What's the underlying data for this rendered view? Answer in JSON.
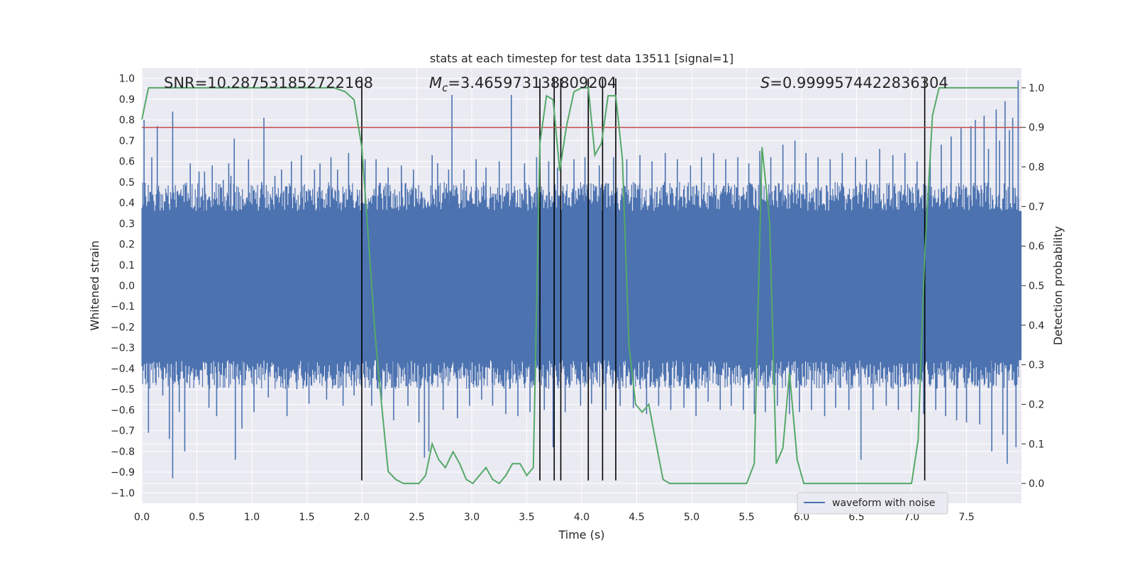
{
  "chart_data": {
    "type": "line",
    "title": "stats at each timestep for test data 13511 [signal=1]",
    "xlabel": "Time (s)",
    "ylabel": "Whitened strain",
    "ylabel_right": "Detection probability",
    "xlim": [
      0.0,
      8.0
    ],
    "ylim": [
      -1.05,
      1.05
    ],
    "ylim_right": [
      -0.05,
      1.05
    ],
    "x_ticks": [
      "0.0",
      "0.5",
      "1.0",
      "1.5",
      "2.0",
      "2.5",
      "3.0",
      "3.5",
      "4.0",
      "4.5",
      "5.0",
      "5.5",
      "6.0",
      "6.5",
      "7.0",
      "7.5"
    ],
    "y_ticks": [
      "1.0",
      "0.9",
      "0.8",
      "0.7",
      "0.6",
      "0.5",
      "0.4",
      "0.3",
      "0.2",
      "0.1",
      "0.0",
      "−0.1",
      "−0.2",
      "−0.3",
      "−0.4",
      "−0.5",
      "−0.6",
      "−0.7",
      "−0.8",
      "−0.9",
      "−1.0"
    ],
    "y_ticks_right": [
      "1.0",
      "0.9",
      "0.8",
      "0.7",
      "0.6",
      "0.5",
      "0.4",
      "0.3",
      "0.2",
      "0.1",
      "0.0"
    ],
    "grid": true,
    "legend_position": "bottom-right",
    "annotations": {
      "snr": "SNR=10.287531852722168",
      "mc_symbol": "M",
      "mc_sub": "c",
      "mc_value": "=3.465973138809204",
      "s_symbol": "S",
      "s_value": "=0.9999574422836304"
    },
    "threshold_right": 0.9,
    "vertical_markers_x": [
      2.0,
      3.62,
      3.75,
      3.81,
      4.06,
      4.19,
      4.31,
      7.12
    ],
    "vertical_markers_yrange": [
      -0.94,
      1.0
    ],
    "series": [
      {
        "name": "waveform with noise",
        "color": "#4c72b0",
        "envelope": 0.36,
        "tails": [
          [
            0.02,
            0.8
          ],
          [
            0.06,
            -0.71
          ],
          [
            0.09,
            0.62
          ],
          [
            0.14,
            0.77
          ],
          [
            0.19,
            -0.53
          ],
          [
            0.25,
            -0.74
          ],
          [
            0.28,
            0.84
          ],
          [
            0.28,
            -0.93
          ],
          [
            0.34,
            -0.61
          ],
          [
            0.39,
            -0.8
          ],
          [
            0.44,
            0.59
          ],
          [
            0.52,
            0.55
          ],
          [
            0.57,
            0.55
          ],
          [
            0.61,
            -0.59
          ],
          [
            0.64,
            0.58
          ],
          [
            0.68,
            -0.63
          ],
          [
            0.74,
            0.51
          ],
          [
            0.79,
            0.59
          ],
          [
            0.81,
            0.53
          ],
          [
            0.84,
            0.71
          ],
          [
            0.85,
            -0.84
          ],
          [
            0.91,
            -0.69
          ],
          [
            0.97,
            0.61
          ],
          [
            1.02,
            -0.61
          ],
          [
            1.09,
            0.5
          ],
          [
            1.11,
            0.81
          ],
          [
            1.15,
            -0.54
          ],
          [
            1.21,
            0.53
          ],
          [
            1.27,
            0.56
          ],
          [
            1.32,
            -0.63
          ],
          [
            1.36,
            0.6
          ],
          [
            1.41,
            -0.5
          ],
          [
            1.45,
            0.63
          ],
          [
            1.52,
            -0.57
          ],
          [
            1.57,
            0.56
          ],
          [
            1.62,
            0.59
          ],
          [
            1.68,
            -0.55
          ],
          [
            1.72,
            0.62
          ],
          [
            1.78,
            0.56
          ],
          [
            1.83,
            -0.58
          ],
          [
            1.88,
            0.64
          ],
          [
            1.93,
            -0.53
          ],
          [
            2.03,
            0.61
          ],
          [
            2.09,
            -0.58
          ],
          [
            2.13,
            0.61
          ],
          [
            2.18,
            -0.55
          ],
          [
            2.24,
            0.57
          ],
          [
            2.29,
            -0.65
          ],
          [
            2.36,
            0.58
          ],
          [
            2.42,
            -0.58
          ],
          [
            2.47,
            0.56
          ],
          [
            2.52,
            -0.66
          ],
          [
            2.57,
            -0.83
          ],
          [
            2.61,
            -0.8
          ],
          [
            2.64,
            0.63
          ],
          [
            2.69,
            0.59
          ],
          [
            2.74,
            -0.6
          ],
          [
            2.79,
            0.56
          ],
          [
            2.82,
            0.92
          ],
          [
            2.87,
            -0.64
          ],
          [
            2.93,
            0.56
          ],
          [
            2.98,
            -0.58
          ],
          [
            3.04,
            0.61
          ],
          [
            3.09,
            -0.55
          ],
          [
            3.13,
            0.57
          ],
          [
            3.19,
            -0.58
          ],
          [
            3.25,
            0.6
          ],
          [
            3.31,
            -0.62
          ],
          [
            3.36,
            0.92
          ],
          [
            3.42,
            -0.63
          ],
          [
            3.48,
            0.59
          ],
          [
            3.53,
            -0.61
          ],
          [
            3.59,
            0.62
          ],
          [
            3.66,
            -0.6
          ],
          [
            3.7,
            0.6
          ],
          [
            3.74,
            -0.78
          ],
          [
            3.78,
            0.57
          ],
          [
            3.85,
            -0.61
          ],
          [
            3.93,
            0.61
          ],
          [
            3.99,
            -0.58
          ],
          [
            4.03,
            0.62
          ],
          [
            4.09,
            -0.57
          ],
          [
            4.16,
            0.58
          ],
          [
            4.22,
            -0.6
          ],
          [
            4.29,
            0.62
          ],
          [
            4.35,
            -0.58
          ],
          [
            4.41,
            0.61
          ],
          [
            4.47,
            -0.59
          ],
          [
            4.53,
            0.63
          ],
          [
            4.59,
            -0.62
          ],
          [
            4.64,
            0.6
          ],
          [
            4.7,
            -0.58
          ],
          [
            4.76,
            0.64
          ],
          [
            4.81,
            -0.6
          ],
          [
            4.87,
            0.61
          ],
          [
            4.93,
            -0.59
          ],
          [
            4.99,
            0.58
          ],
          [
            5.04,
            -0.63
          ],
          [
            5.09,
            0.62
          ],
          [
            5.15,
            -0.56
          ],
          [
            5.2,
            0.64
          ],
          [
            5.26,
            -0.6
          ],
          [
            5.31,
            0.61
          ],
          [
            5.36,
            -0.58
          ],
          [
            5.42,
            0.62
          ],
          [
            5.47,
            -0.6
          ],
          [
            5.52,
            0.59
          ],
          [
            5.57,
            -0.62
          ],
          [
            5.62,
            0.65
          ],
          [
            5.67,
            -0.61
          ],
          [
            5.72,
            0.62
          ],
          [
            5.78,
            -0.58
          ],
          [
            5.83,
            0.68
          ],
          [
            5.89,
            -0.62
          ],
          [
            5.94,
            0.7
          ],
          [
            5.98,
            -0.61
          ],
          [
            6.04,
            0.64
          ],
          [
            6.09,
            -0.6
          ],
          [
            6.15,
            0.62
          ],
          [
            6.21,
            -0.63
          ],
          [
            6.26,
            0.61
          ],
          [
            6.31,
            -0.59
          ],
          [
            6.37,
            0.64
          ],
          [
            6.43,
            -0.6
          ],
          [
            6.49,
            0.62
          ],
          [
            6.54,
            -0.84
          ],
          [
            6.59,
            0.61
          ],
          [
            6.65,
            -0.6
          ],
          [
            6.71,
            0.66
          ],
          [
            6.77,
            -0.58
          ],
          [
            6.83,
            0.63
          ],
          [
            6.88,
            -0.6
          ],
          [
            6.94,
            0.64
          ],
          [
            7.0,
            -0.61
          ],
          [
            7.05,
            0.6
          ],
          [
            7.11,
            -0.62
          ],
          [
            7.17,
            0.65
          ],
          [
            7.22,
            -0.6
          ],
          [
            7.27,
            0.68
          ],
          [
            7.31,
            -0.63
          ],
          [
            7.36,
            0.72
          ],
          [
            7.41,
            -0.65
          ],
          [
            7.45,
            0.76
          ],
          [
            7.5,
            -0.66
          ],
          [
            7.54,
            0.77
          ],
          [
            7.58,
            0.8
          ],
          [
            7.62,
            -0.67
          ],
          [
            7.66,
            0.82
          ],
          [
            7.7,
            0.66
          ],
          [
            7.73,
            -0.8
          ],
          [
            7.77,
            0.85
          ],
          [
            7.8,
            0.7
          ],
          [
            7.83,
            -0.72
          ],
          [
            7.85,
            0.89
          ],
          [
            7.87,
            -0.86
          ],
          [
            7.89,
            0.75
          ],
          [
            7.92,
            0.81
          ],
          [
            7.95,
            -0.78
          ],
          [
            7.97,
            0.99
          ]
        ]
      },
      {
        "name": "",
        "axis": "right",
        "color": "#55a868",
        "x": [
          0.0,
          0.06,
          0.15,
          0.5,
          1.0,
          1.5,
          1.75,
          1.85,
          1.93,
          2.0,
          2.06,
          2.12,
          2.18,
          2.24,
          2.31,
          2.38,
          2.45,
          2.52,
          2.58,
          2.64,
          2.7,
          2.76,
          2.83,
          2.89,
          2.95,
          3.01,
          3.07,
          3.13,
          3.19,
          3.25,
          3.31,
          3.37,
          3.44,
          3.5,
          3.56,
          3.62,
          3.68,
          3.74,
          3.8,
          3.86,
          3.93,
          4.0,
          4.06,
          4.12,
          4.18,
          4.24,
          4.31,
          4.37,
          4.43,
          4.49,
          4.55,
          4.61,
          4.67,
          4.74,
          4.8,
          5.0,
          5.5,
          5.57,
          5.64,
          5.71,
          5.77,
          5.83,
          5.89,
          5.96,
          6.02,
          6.08,
          6.15,
          6.5,
          6.7,
          6.9,
          7.0,
          7.06,
          7.12,
          7.19,
          7.25,
          7.5,
          7.97
        ],
        "values": [
          0.92,
          1.0,
          1.0,
          1.0,
          1.0,
          1.0,
          1.0,
          0.99,
          0.97,
          0.85,
          0.62,
          0.38,
          0.2,
          0.03,
          0.01,
          0.0,
          0.0,
          0.0,
          0.02,
          0.1,
          0.06,
          0.04,
          0.08,
          0.05,
          0.01,
          0.0,
          0.02,
          0.04,
          0.01,
          0.0,
          0.02,
          0.05,
          0.05,
          0.02,
          0.04,
          0.86,
          0.98,
          0.97,
          0.79,
          0.9,
          0.99,
          1.0,
          1.0,
          0.83,
          0.86,
          0.98,
          0.98,
          0.82,
          0.35,
          0.2,
          0.18,
          0.2,
          0.11,
          0.01,
          0.0,
          0.0,
          0.0,
          0.05,
          0.85,
          0.66,
          0.05,
          0.09,
          0.28,
          0.06,
          0.0,
          0.0,
          0.0,
          0.0,
          0.0,
          0.0,
          0.0,
          0.11,
          0.58,
          0.93,
          1.0,
          1.0,
          1.0
        ]
      }
    ]
  }
}
